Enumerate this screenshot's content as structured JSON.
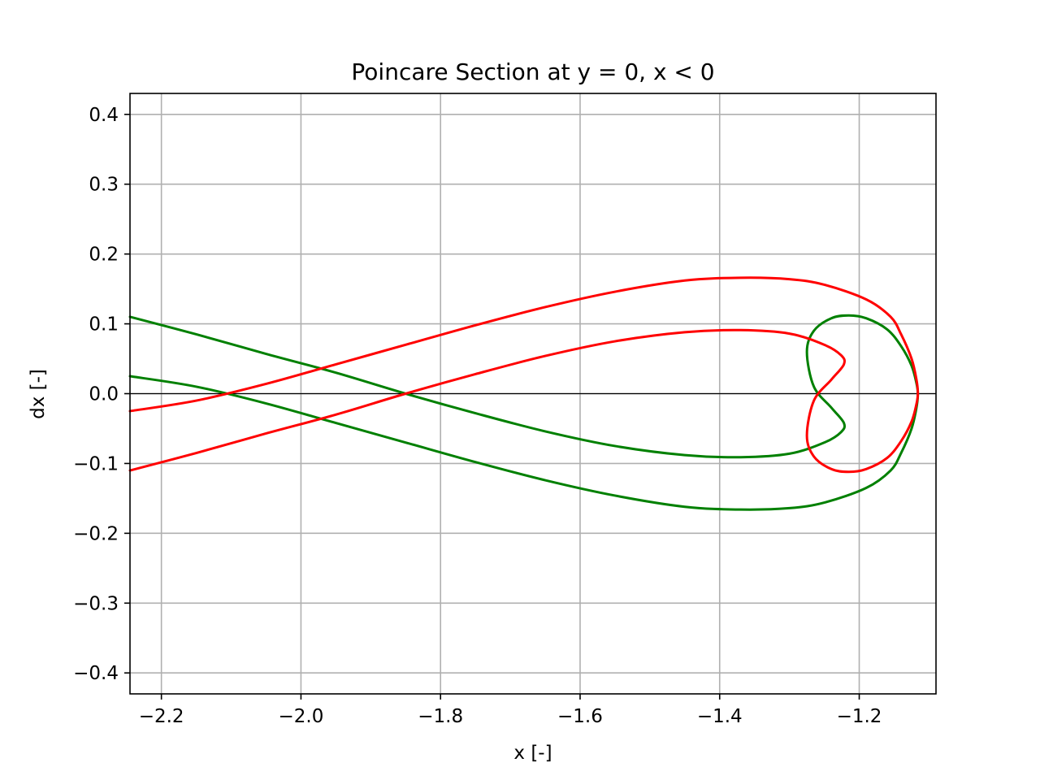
{
  "chart_data": {
    "type": "line",
    "title": "Poincare Section at y = 0, x < 0",
    "xlabel": "x [-]",
    "ylabel": "dx [-]",
    "xlim": [
      -2.245,
      -1.09
    ],
    "ylim": [
      -0.43,
      0.43
    ],
    "grid": true,
    "x_ticks": [
      -2.2,
      -2.0,
      -1.8,
      -1.6,
      -1.4,
      -1.2
    ],
    "x_tick_labels": [
      "−2.2",
      "−2.0",
      "−1.8",
      "−1.6",
      "−1.4",
      "−1.2"
    ],
    "y_ticks": [
      0.4,
      0.3,
      0.2,
      0.1,
      0.0,
      -0.1,
      -0.2,
      -0.3,
      -0.4
    ],
    "y_tick_labels": [
      "0.4",
      "0.3",
      "0.2",
      "0.1",
      "0.0",
      "−0.1",
      "−0.2",
      "−0.3",
      "−0.4"
    ],
    "reference_line": {
      "y": 0.0,
      "color": "#000000"
    },
    "series": [
      {
        "color": "#008000",
        "x": [
          -2.245,
          -2.15,
          -2.05,
          -1.95,
          -1.85,
          -1.75,
          -1.65,
          -1.55,
          -1.45,
          -1.37,
          -1.3,
          -1.25,
          -1.226,
          -1.222,
          -1.24,
          -1.265,
          -1.275,
          -1.265,
          -1.24,
          -1.215,
          -1.19,
          -1.16,
          -1.14,
          -1.125,
          -1.118,
          -1.116,
          -1.118,
          -1.125,
          -1.14,
          -1.155,
          -1.19,
          -1.25,
          -1.3,
          -1.37,
          -1.45,
          -1.55,
          -1.65,
          -1.75,
          -1.85,
          -1.95,
          -2.05,
          -2.15,
          -2.245
        ],
        "y": [
          0.11,
          0.085,
          0.057,
          0.03,
          0.0,
          -0.028,
          -0.054,
          -0.075,
          -0.088,
          -0.091,
          -0.086,
          -0.07,
          -0.055,
          -0.042,
          -0.02,
          0.01,
          0.06,
          0.09,
          0.108,
          0.112,
          0.108,
          0.092,
          0.068,
          0.04,
          0.015,
          0.0,
          -0.02,
          -0.05,
          -0.085,
          -0.11,
          -0.135,
          -0.156,
          -0.164,
          -0.166,
          -0.162,
          -0.146,
          -0.124,
          -0.098,
          -0.07,
          -0.042,
          -0.014,
          0.01,
          0.025
        ]
      },
      {
        "color": "#ff0000",
        "x": [
          -2.245,
          -2.15,
          -2.05,
          -1.95,
          -1.85,
          -1.75,
          -1.65,
          -1.55,
          -1.45,
          -1.37,
          -1.3,
          -1.25,
          -1.226,
          -1.222,
          -1.24,
          -1.265,
          -1.275,
          -1.265,
          -1.24,
          -1.215,
          -1.19,
          -1.16,
          -1.14,
          -1.125,
          -1.118,
          -1.116,
          -1.118,
          -1.125,
          -1.14,
          -1.155,
          -1.19,
          -1.25,
          -1.3,
          -1.37,
          -1.45,
          -1.55,
          -1.65,
          -1.75,
          -1.85,
          -1.95,
          -2.05,
          -2.15,
          -2.245
        ],
        "y": [
          -0.11,
          -0.085,
          -0.057,
          -0.03,
          0.0,
          0.028,
          0.054,
          0.075,
          0.088,
          0.091,
          0.086,
          0.07,
          0.055,
          0.042,
          0.02,
          -0.01,
          -0.06,
          -0.09,
          -0.108,
          -0.112,
          -0.108,
          -0.092,
          -0.068,
          -0.04,
          -0.015,
          0.0,
          0.02,
          0.05,
          0.085,
          0.11,
          0.135,
          0.156,
          0.164,
          0.166,
          0.162,
          0.146,
          0.124,
          0.098,
          0.07,
          0.042,
          0.014,
          -0.01,
          -0.025
        ]
      }
    ]
  }
}
